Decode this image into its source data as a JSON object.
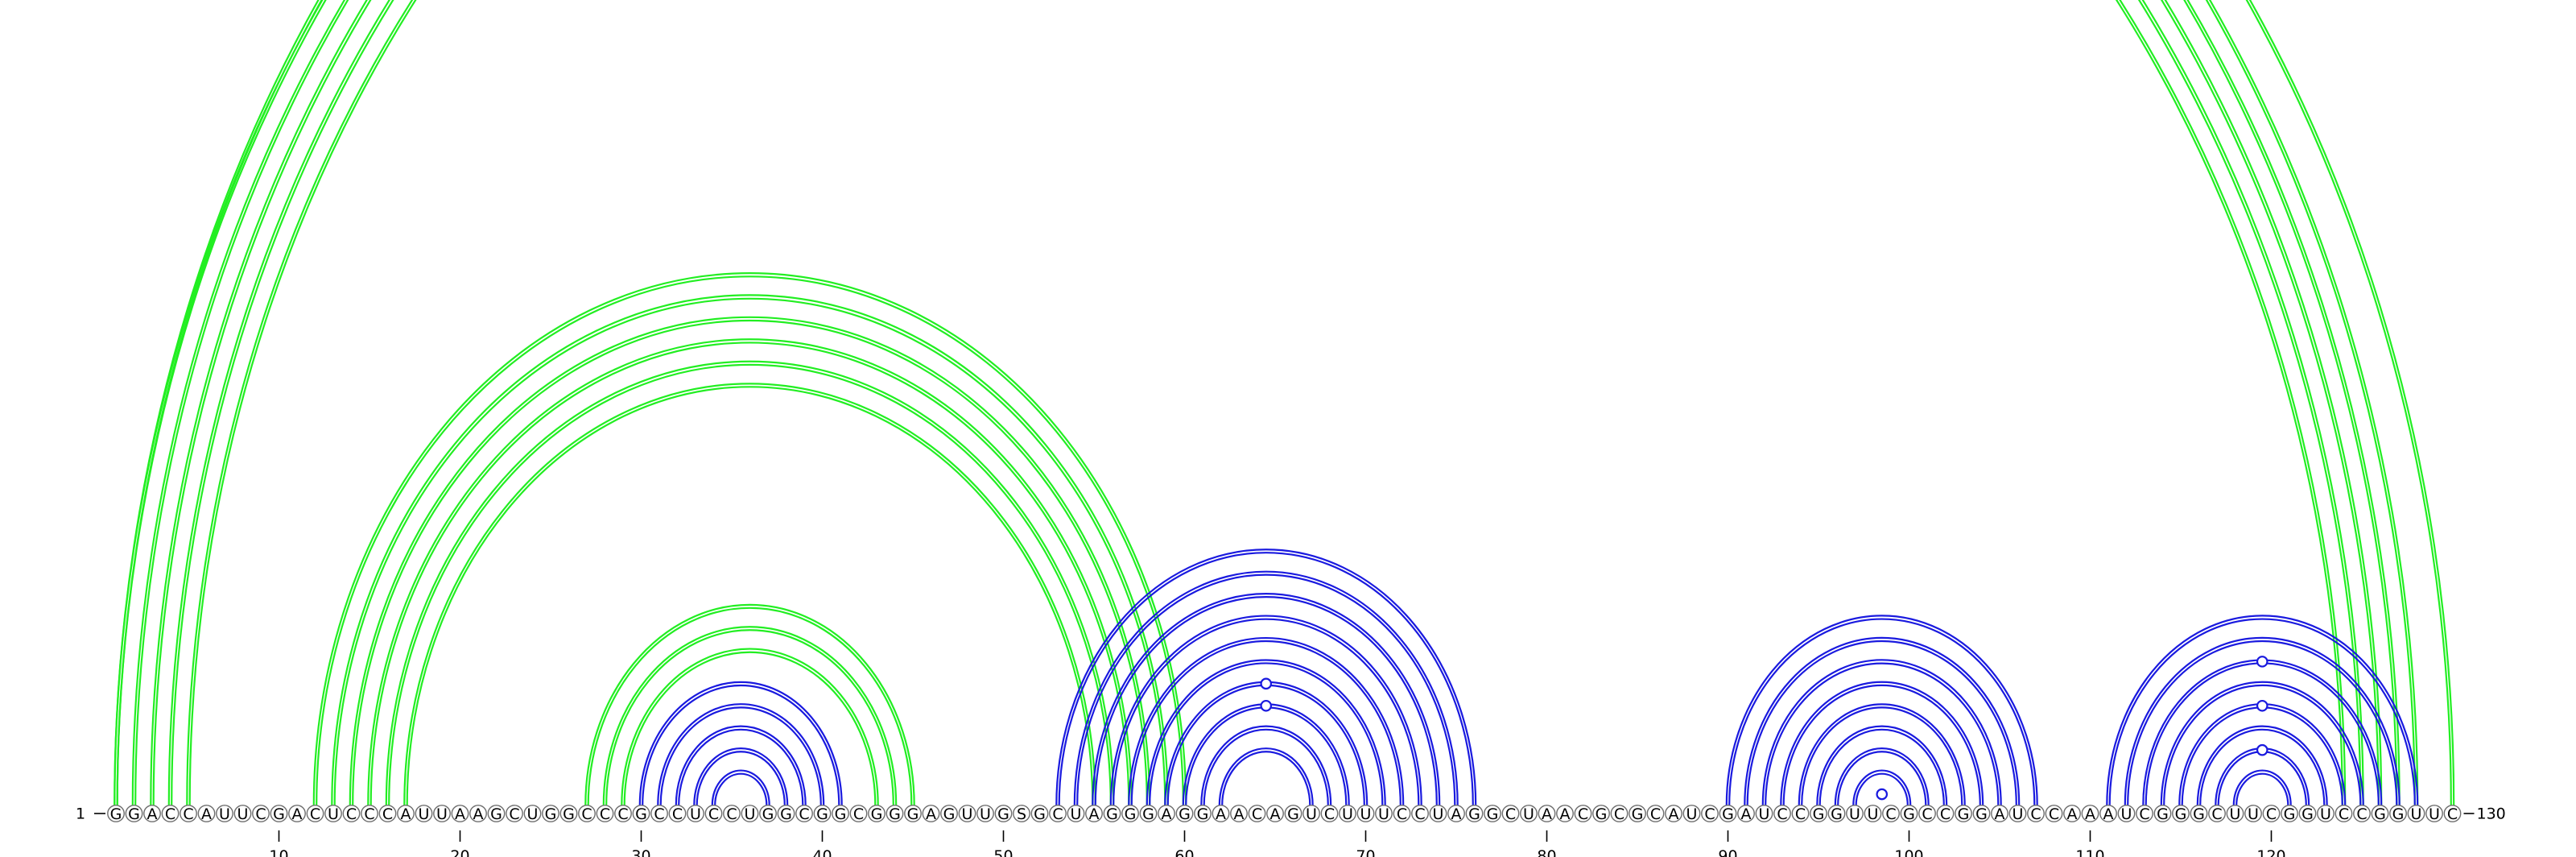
{
  "diagram": {
    "type": "rna-arc-diagram",
    "sequence": "GGACCAUUCGACUCCCAUUAAGCUGGCCCGCCUCCUGGCGGCGGGAGUUGSGCUAGGGAGGAACAGUCUUUCCUAGGCUAACGCGCAUCGAUCCGGUUCGCCGGAUCCAAAUCGGGCUUCGGUCCGGUUC",
    "start_label": "1",
    "end_label": "130",
    "tick_labels": [
      "10",
      "20",
      "30",
      "40",
      "50",
      "60",
      "70",
      "80",
      "90",
      "100",
      "110",
      "120"
    ],
    "colors": {
      "green": "#22ee22",
      "blue": "#1a1adf",
      "nucleotide_outline": "#6e6e6e"
    },
    "arc_groups": [
      {
        "color": "green",
        "style": "double",
        "pairs": [
          [
            1,
            128
          ],
          [
            2,
            127
          ],
          [
            3,
            126
          ],
          [
            4,
            125
          ],
          [
            5,
            124
          ]
        ]
      },
      {
        "color": "green",
        "style": "single",
        "pairs": [
          [
            1,
            130
          ]
        ],
        "markers": [
          [
            1,
            130
          ]
        ]
      },
      {
        "color": "green",
        "style": "double",
        "pairs": [
          [
            12,
            60
          ],
          [
            13,
            59
          ],
          [
            14,
            58
          ],
          [
            15,
            57
          ],
          [
            16,
            56
          ],
          [
            17,
            55
          ]
        ]
      },
      {
        "color": "green",
        "style": "double",
        "pairs": [
          [
            27,
            45
          ],
          [
            28,
            44
          ],
          [
            29,
            43
          ]
        ]
      },
      {
        "color": "blue",
        "style": "double",
        "pairs": [
          [
            30,
            41
          ],
          [
            31,
            40
          ],
          [
            32,
            39
          ],
          [
            33,
            38
          ],
          [
            34,
            37
          ]
        ]
      },
      {
        "color": "blue",
        "style": "single",
        "pairs": [
          [
            53,
            76
          ],
          [
            54,
            75
          ],
          [
            55,
            74
          ],
          [
            56,
            73
          ],
          [
            57,
            72
          ],
          [
            58,
            71
          ],
          [
            59,
            70
          ],
          [
            60,
            69
          ],
          [
            61,
            68
          ],
          [
            62,
            67
          ]
        ],
        "markers": [
          [
            59,
            70
          ],
          [
            60,
            69
          ]
        ]
      },
      {
        "color": "blue",
        "style": "single",
        "pairs": [
          [
            90,
            107
          ],
          [
            91,
            106
          ],
          [
            92,
            105
          ],
          [
            93,
            104
          ],
          [
            94,
            103
          ],
          [
            95,
            102
          ],
          [
            96,
            101
          ],
          [
            97,
            100
          ]
        ],
        "markers": [
          [
            98,
            99
          ]
        ]
      },
      {
        "color": "blue",
        "style": "single",
        "pairs": [
          [
            111,
            128
          ],
          [
            112,
            127
          ],
          [
            113,
            126
          ],
          [
            114,
            125
          ],
          [
            115,
            124
          ],
          [
            116,
            123
          ],
          [
            117,
            122
          ],
          [
            118,
            121
          ]
        ],
        "markers": [
          [
            113,
            126
          ],
          [
            115,
            124
          ],
          [
            117,
            122
          ]
        ]
      }
    ]
  }
}
